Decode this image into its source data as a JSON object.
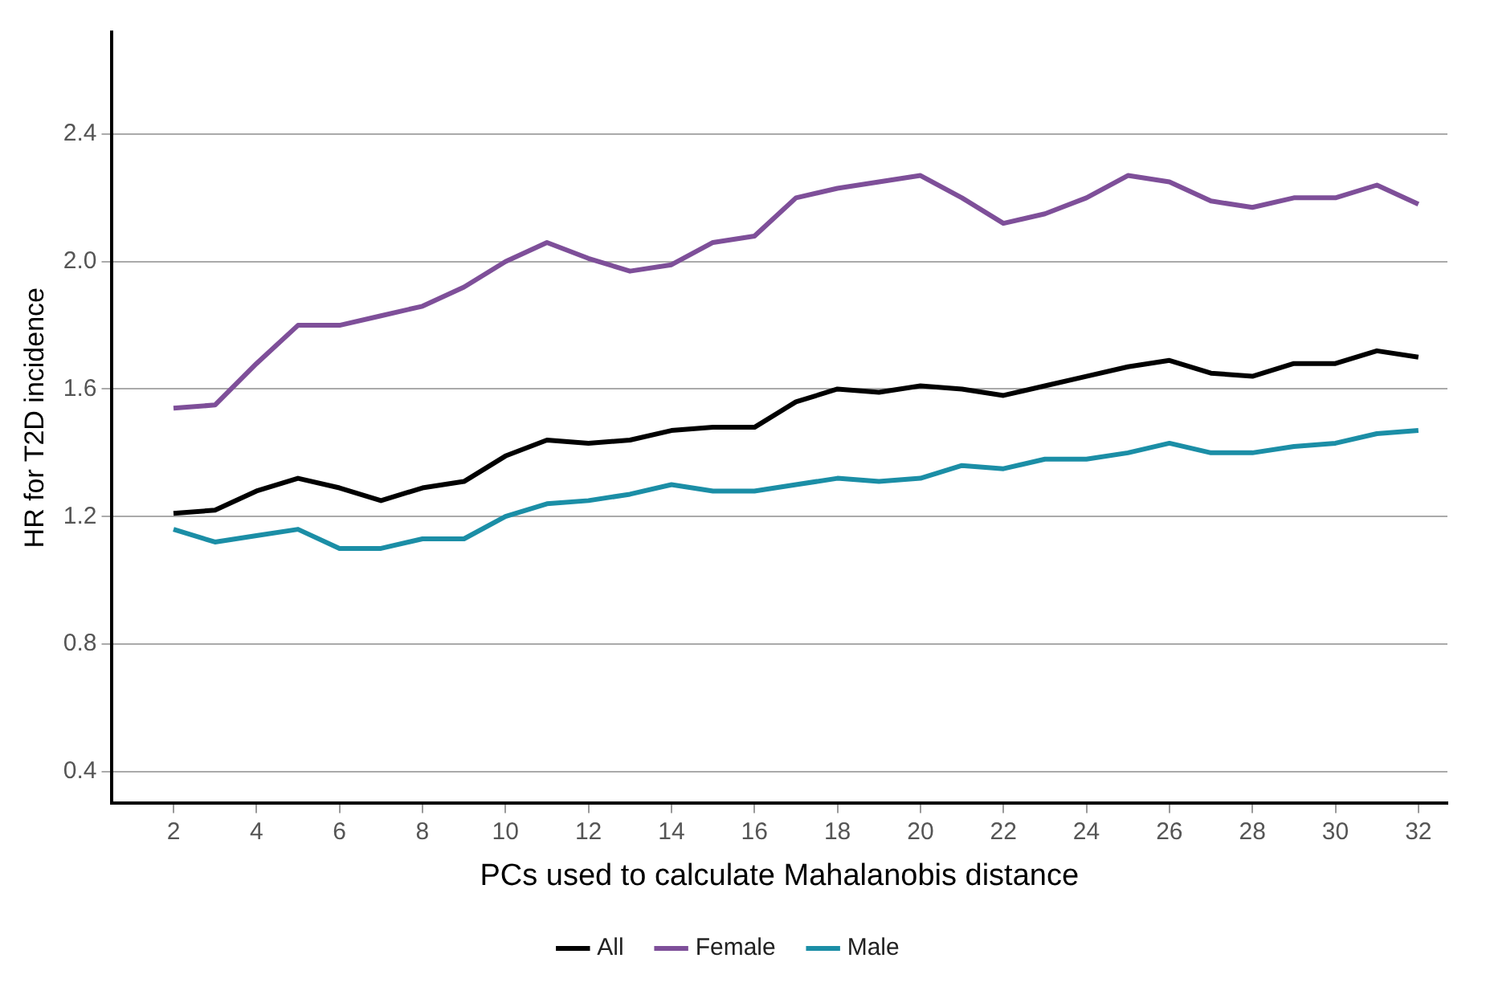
{
  "chart_data": {
    "type": "line",
    "xlabel": "PCs used to calculate Mahalanobis distance",
    "ylabel": "HR for T2D incidence",
    "x": [
      2,
      3,
      4,
      5,
      6,
      7,
      8,
      9,
      10,
      11,
      12,
      13,
      14,
      15,
      16,
      17,
      18,
      19,
      20,
      21,
      22,
      23,
      24,
      25,
      26,
      27,
      28,
      29,
      30,
      31,
      32
    ],
    "series": [
      {
        "name": "All",
        "color": "#000000",
        "values": [
          1.21,
          1.22,
          1.28,
          1.32,
          1.29,
          1.25,
          1.29,
          1.31,
          1.39,
          1.44,
          1.43,
          1.44,
          1.47,
          1.48,
          1.48,
          1.56,
          1.6,
          1.59,
          1.61,
          1.6,
          1.58,
          1.61,
          1.64,
          1.67,
          1.69,
          1.65,
          1.64,
          1.68,
          1.68,
          1.72,
          1.7
        ]
      },
      {
        "name": "Female",
        "color": "#7e4f99",
        "values": [
          1.54,
          1.55,
          1.68,
          1.8,
          1.8,
          1.83,
          1.86,
          1.92,
          2.0,
          2.06,
          2.01,
          1.97,
          1.99,
          2.06,
          2.08,
          2.2,
          2.23,
          2.25,
          2.27,
          2.2,
          2.12,
          2.15,
          2.2,
          2.27,
          2.25,
          2.19,
          2.17,
          2.2,
          2.2,
          2.24,
          2.18
        ]
      },
      {
        "name": "Male",
        "color": "#1b8ea6",
        "values": [
          1.16,
          1.12,
          1.14,
          1.16,
          1.1,
          1.1,
          1.13,
          1.13,
          1.2,
          1.24,
          1.25,
          1.27,
          1.3,
          1.28,
          1.28,
          1.3,
          1.32,
          1.31,
          1.32,
          1.36,
          1.35,
          1.38,
          1.38,
          1.4,
          1.43,
          1.4,
          1.4,
          1.42,
          1.43,
          1.46,
          1.47
        ]
      }
    ],
    "xlim": [
      0.5,
      32.7
    ],
    "xticks": [
      2,
      4,
      6,
      8,
      10,
      12,
      14,
      16,
      18,
      20,
      22,
      24,
      26,
      28,
      30,
      32
    ],
    "ylim": [
      0.3,
      2.72
    ],
    "yticks": [
      0.4,
      0.8,
      1.2,
      1.6,
      {
        "value": 2,
        "label": "2.0"
      },
      2.4
    ],
    "grid": "y",
    "legend": "bottom",
    "marker": "none",
    "line_style": "solid"
  }
}
